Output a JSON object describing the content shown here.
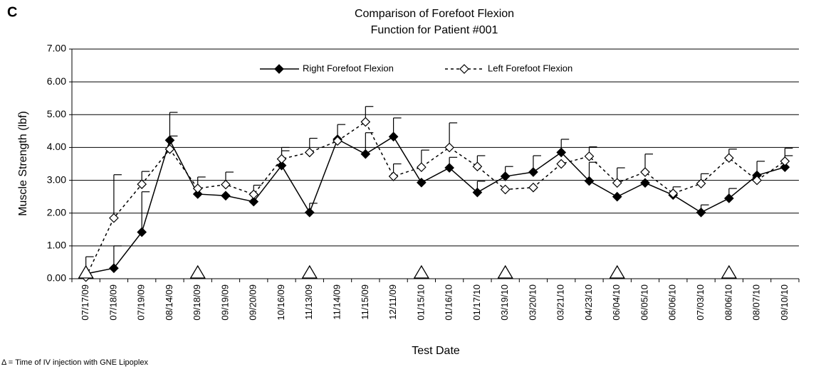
{
  "panel_label": "C",
  "footnote": "Δ = Time of IV injection with GNE Lipoplex",
  "chart_data": {
    "type": "line",
    "title": [
      "Comparison of Forefoot Flexion",
      "Function for Patient #001"
    ],
    "x_label": "Test Date",
    "y_label": "Muscle Strength (lbf)",
    "categories": [
      "07/17/09",
      "07/18/09",
      "07/19/09",
      "08/14/09",
      "09/18/09",
      "09/19/09",
      "09/20/09",
      "10/16/09",
      "11/13/09",
      "11/14/09",
      "11/15/09",
      "12/11/09",
      "01/15/10",
      "01/16/10",
      "01/17/10",
      "03/19/10",
      "03/20/10",
      "03/21/10",
      "04/23/10",
      "06/04/10",
      "06/05/10",
      "06/06/10",
      "07/03/10",
      "08/06/10",
      "08/07/10",
      "09/10/10"
    ],
    "injection_indices": [
      0,
      4,
      8,
      12,
      15,
      19,
      23
    ],
    "ylim": [
      0,
      7
    ],
    "yticks": [
      {
        "value": 0,
        "label": "0.00"
      },
      {
        "value": 1,
        "label": "1.00"
      },
      {
        "value": 2,
        "label": "2.00"
      },
      {
        "value": 3,
        "label": "3.00"
      },
      {
        "value": 4,
        "label": "4.00"
      },
      {
        "value": 5,
        "label": "5.00"
      },
      {
        "value": 6,
        "label": "6.00"
      },
      {
        "value": 7,
        "label": "7.00"
      }
    ],
    "grid": true,
    "series": [
      {
        "name": "Right Forefoot Flexion",
        "color": "#000000",
        "dashed": false,
        "marker_fill": "#000000",
        "values": [
          0.15,
          0.32,
          1.42,
          4.22,
          2.58,
          2.53,
          2.35,
          3.45,
          2.02,
          4.25,
          3.8,
          4.33,
          2.93,
          3.38,
          2.63,
          3.12,
          3.25,
          3.85,
          2.98,
          2.5,
          2.92,
          2.55,
          2.02,
          2.45,
          3.15,
          3.4
        ],
        "errors": [
          0.52,
          0.68,
          1.23,
          0.85,
          null,
          null,
          null,
          0.45,
          0.28,
          0.45,
          0.65,
          0.57,
          null,
          0.32,
          0.34,
          0.3,
          0.5,
          0.4,
          0.57,
          null,
          null,
          0.25,
          0.23,
          0.3,
          0.43,
          0.35
        ]
      },
      {
        "name": "Left Forefoot Flexion",
        "color": "#000000",
        "dashed": true,
        "marker_fill": "#ffffff",
        "values": [
          0.05,
          1.85,
          2.88,
          3.95,
          2.75,
          2.87,
          2.57,
          3.65,
          3.85,
          4.2,
          4.78,
          3.12,
          3.4,
          4.0,
          3.42,
          2.72,
          2.78,
          3.5,
          3.73,
          2.92,
          3.25,
          2.6,
          2.9,
          3.68,
          3.0,
          3.58
        ],
        "errors": [
          null,
          1.32,
          0.39,
          0.4,
          0.35,
          0.38,
          0.28,
          0.35,
          0.43,
          null,
          0.47,
          0.38,
          0.52,
          0.75,
          0.33,
          null,
          null,
          null,
          0.29,
          0.46,
          0.55,
          null,
          0.3,
          0.27,
          null,
          0.4
        ]
      }
    ]
  }
}
